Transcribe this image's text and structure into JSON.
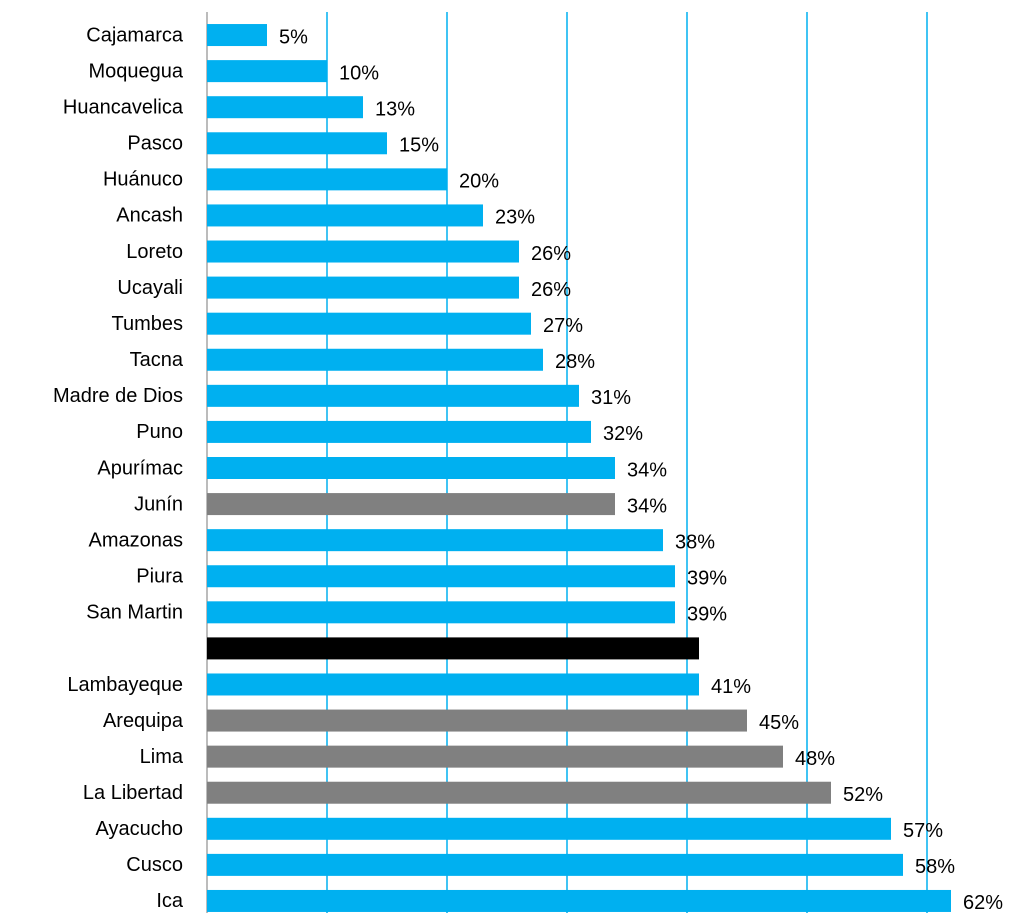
{
  "chart_data": {
    "type": "hbar",
    "categories": [
      "Cajamarca",
      "Moquegua",
      "Huancavelica",
      "Pasco",
      "Huánuco",
      "Ancash",
      "Loreto",
      "Ucayali",
      "Tumbes",
      "Tacna",
      "Madre de Dios",
      "Puno",
      "Apurímac",
      "Junín",
      "Amazonas",
      "Piura",
      "San Martin",
      null,
      "Lambayeque",
      "Arequipa",
      "Lima",
      "La Libertad",
      "Ayacucho",
      "Cusco",
      "Ica"
    ],
    "values": [
      5,
      10,
      13,
      15,
      20,
      23,
      26,
      26,
      27,
      28,
      31,
      32,
      34,
      34,
      38,
      39,
      39,
      41,
      41,
      45,
      48,
      52,
      57,
      58,
      62
    ],
    "value_labels": [
      "5%",
      "10%",
      "13%",
      "15%",
      "20%",
      "23%",
      "26%",
      "26%",
      "27%",
      "28%",
      "31%",
      "32%",
      "34%",
      "34%",
      "38%",
      "39%",
      "39%",
      null,
      "41%",
      "45%",
      "48%",
      "52%",
      "57%",
      "58%",
      "62%"
    ],
    "colors": [
      "#00b0f0",
      "#00b0f0",
      "#00b0f0",
      "#00b0f0",
      "#00b0f0",
      "#00b0f0",
      "#00b0f0",
      "#00b0f0",
      "#00b0f0",
      "#00b0f0",
      "#00b0f0",
      "#00b0f0",
      "#00b0f0",
      "#808080",
      "#00b0f0",
      "#00b0f0",
      "#00b0f0",
      "#000000",
      "#00b0f0",
      "#808080",
      "#808080",
      "#808080",
      "#00b0f0",
      "#00b0f0",
      "#00b0f0"
    ],
    "xlim": [
      0,
      65
    ],
    "xticks": [
      0,
      10,
      20,
      30,
      40,
      50,
      60
    ],
    "grid": true
  }
}
